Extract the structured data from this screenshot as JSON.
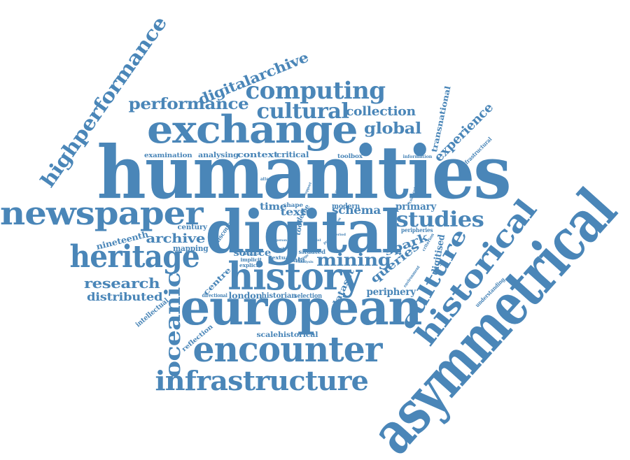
{
  "color": "#4a86b8",
  "words": [
    {
      "id": "humanities",
      "text": "humanities"
    },
    {
      "id": "asymmetrical",
      "text": "asymmetrical"
    },
    {
      "id": "digital",
      "text": "digital"
    },
    {
      "id": "european",
      "text": "european"
    },
    {
      "id": "exchange",
      "text": "exchange"
    },
    {
      "id": "history",
      "text": "history"
    },
    {
      "id": "encounter",
      "text": "encounter"
    },
    {
      "id": "newspaper",
      "text": "newspaper"
    },
    {
      "id": "heritage",
      "text": "heritage"
    },
    {
      "id": "historical",
      "text": "historical"
    },
    {
      "id": "infrastructure",
      "text": "infrastructure"
    },
    {
      "id": "highperformance",
      "text": "highperformance"
    },
    {
      "id": "oceanic",
      "text": "oceanic"
    },
    {
      "id": "computing",
      "text": "computing"
    },
    {
      "id": "cultural",
      "text": "cultural"
    },
    {
      "id": "culture",
      "text": "culture"
    },
    {
      "id": "studies",
      "text": "studies"
    },
    {
      "id": "mining",
      "text": "mining"
    },
    {
      "id": "performance",
      "text": "performance"
    },
    {
      "id": "digitalarchive",
      "text": "digitalarchive"
    },
    {
      "id": "global",
      "text": "global"
    },
    {
      "id": "experience",
      "text": "experience"
    },
    {
      "id": "research",
      "text": "research"
    },
    {
      "id": "distributed",
      "text": "distributed"
    },
    {
      "id": "collection",
      "text": "collection"
    },
    {
      "id": "archive",
      "text": "archive"
    },
    {
      "id": "queries",
      "text": "queries"
    },
    {
      "id": "spark",
      "text": "spark"
    },
    {
      "id": "schema",
      "text": "schema"
    },
    {
      "id": "primary",
      "text": "primary"
    },
    {
      "id": "text",
      "text": "text"
    },
    {
      "id": "time",
      "text": "time"
    },
    {
      "id": "source",
      "text": "source"
    },
    {
      "id": "periphery",
      "text": "periphery"
    },
    {
      "id": "london",
      "text": "london"
    },
    {
      "id": "dataset",
      "text": "dataset"
    },
    {
      "id": "transnational",
      "text": "transnational"
    },
    {
      "id": "digitised",
      "text": "digitised"
    },
    {
      "id": "nineteenth",
      "text": "nineteenth"
    },
    {
      "id": "mapping",
      "text": "mapping"
    },
    {
      "id": "centre",
      "text": "centre"
    },
    {
      "id": "examination",
      "text": "examination"
    },
    {
      "id": "analysing",
      "text": "analysing"
    },
    {
      "id": "context",
      "text": "context"
    },
    {
      "id": "critical",
      "text": "critical"
    },
    {
      "id": "toolbox",
      "text": "toolbox"
    },
    {
      "id": "information",
      "text": "information"
    },
    {
      "id": "infrastructural",
      "text": "infrastructural"
    },
    {
      "id": "understanding",
      "text": "understanding"
    },
    {
      "id": "intellectual",
      "text": "intellectual"
    },
    {
      "id": "reflection",
      "text": "reflection"
    },
    {
      "id": "scalehistorical",
      "text": "scalehistorical"
    },
    {
      "id": "historian",
      "text": "historian"
    },
    {
      "id": "selection",
      "text": "selection"
    },
    {
      "id": "modern",
      "text": "modern"
    },
    {
      "id": "situated",
      "text": "situated"
    },
    {
      "id": "textual",
      "text": "textual"
    },
    {
      "id": "explicit",
      "text": "explicit"
    },
    {
      "id": "implicit",
      "text": "implicit"
    },
    {
      "id": "century",
      "text": "century"
    },
    {
      "id": "discourse",
      "text": "discourse"
    },
    {
      "id": "directional",
      "text": "directional"
    },
    {
      "id": "shape",
      "text": "shape"
    },
    {
      "id": "defoe",
      "text": "defoe"
    },
    {
      "id": "data",
      "text": "data"
    },
    {
      "id": "tool",
      "text": "tool"
    },
    {
      "id": "attention",
      "text": "attention"
    },
    {
      "id": "peripheries",
      "text": "peripheries"
    },
    {
      "id": "researcher",
      "text": "researcher"
    },
    {
      "id": "environment",
      "text": "environment"
    },
    {
      "id": "criterion",
      "text": "criterion"
    },
    {
      "id": "conceptual",
      "text": "conceptual"
    },
    {
      "id": "literature",
      "text": "literature"
    },
    {
      "id": "provider",
      "text": "provider"
    },
    {
      "id": "reach",
      "text": "reach"
    },
    {
      "id": "storage",
      "text": "storage"
    },
    {
      "id": "analysis",
      "text": "analysis"
    },
    {
      "id": "period",
      "text": "period"
    },
    {
      "id": "project",
      "text": "project"
    },
    {
      "id": "question",
      "text": "question"
    },
    {
      "id": "support",
      "text": "support"
    },
    {
      "id": "person",
      "text": "person"
    },
    {
      "id": "model",
      "text": "model"
    }
  ]
}
